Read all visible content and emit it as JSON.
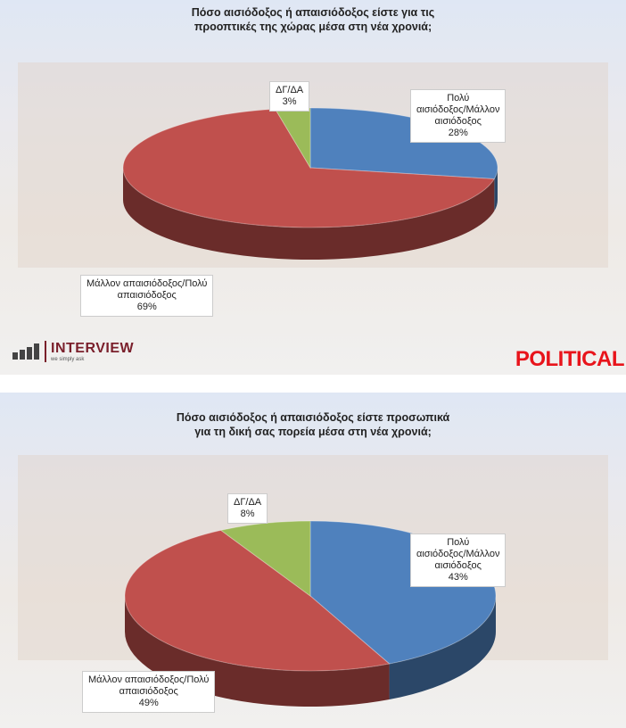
{
  "charts_meta": {
    "logo_left": "INTERVIEW",
    "logo_left_tagline": "we simply ask",
    "logo_right": "POLITICAL"
  },
  "chart_data": [
    {
      "type": "pie",
      "title": "Πόσο αισιόδοξος ή απαισιόδοξος είστε για τις προοπτικές της χώρας μέσα στη νέα χρονιά;",
      "title_lines": [
        "Πόσο αισιόδοξος ή απαισιόδοξος είστε για τις",
        "προοπτικές της χώρας μέσα στη νέα χρονιά;"
      ],
      "slices": [
        {
          "label_lines": [
            "Πολύ",
            "αισιόδοξος/Μάλλον",
            "αισιόδοξος"
          ],
          "value": 28,
          "value_label": "28%",
          "color": "#4f81bd"
        },
        {
          "label_lines": [
            "Μάλλον απαισιόδοξος/Πολύ",
            "απαισιόδοξος"
          ],
          "value": 69,
          "value_label": "69%",
          "color": "#c0504d"
        },
        {
          "label_lines": [
            "ΔΓ/ΔΑ"
          ],
          "value": 3,
          "value_label": "3%",
          "color": "#9bbb59"
        }
      ]
    },
    {
      "type": "pie",
      "title": "Πόσο αισιόδοξος ή απαισιόδοξος είστε προσωπικά για τη δική σας πορεία μέσα στη νέα χρονιά;",
      "title_lines": [
        "Πόσο αισιόδοξος ή απαισιόδοξος είστε προσωπικά",
        "για τη δική σας πορεία μέσα στη νέα χρονιά;"
      ],
      "slices": [
        {
          "label_lines": [
            "Πολύ",
            "αισιόδοξος/Μάλλον",
            "αισιόδοξος"
          ],
          "value": 43,
          "value_label": "43%",
          "color": "#4f81bd"
        },
        {
          "label_lines": [
            "Μάλλον απαισιόδοξος/Πολύ",
            "απαισιόδοξος"
          ],
          "value": 49,
          "value_label": "49%",
          "color": "#c0504d"
        },
        {
          "label_lines": [
            "ΔΓ/ΔΑ"
          ],
          "value": 8,
          "value_label": "8%",
          "color": "#9bbb59"
        }
      ]
    }
  ]
}
